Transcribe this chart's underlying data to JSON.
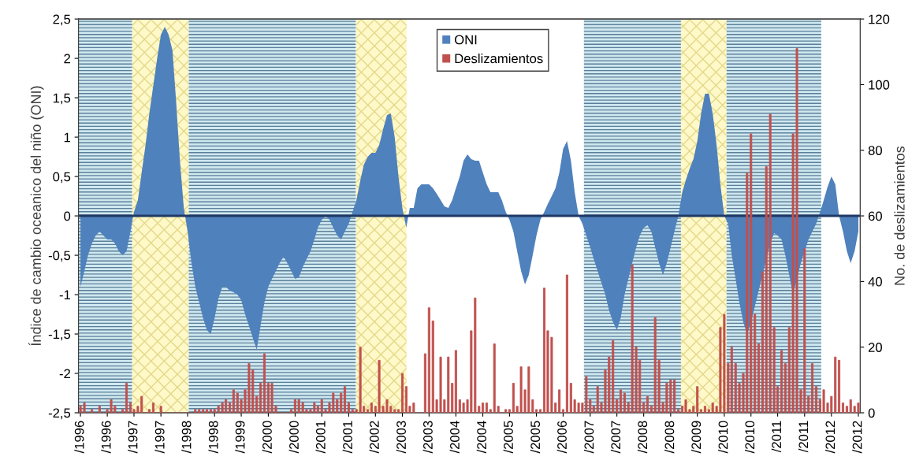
{
  "chart_data": {
    "type": "bar",
    "ylabel": "Índice de cambio oceanico del niño (ONI)",
    "y2label": "No. de deslizamientos",
    "x": [
      "1996-01",
      "1996-02",
      "1996-03",
      "1996-04",
      "1996-05",
      "1996-06",
      "1996-07",
      "1996-08",
      "1996-09",
      "1996-10",
      "1996-11",
      "1996-12",
      "1997-01",
      "1997-02",
      "1997-03",
      "1997-04",
      "1997-05",
      "1997-06",
      "1997-07",
      "1997-08",
      "1997-09",
      "1997-10",
      "1997-11",
      "1997-12",
      "1998-01",
      "1998-02",
      "1998-03",
      "1998-04",
      "1998-05",
      "1998-06",
      "1998-07",
      "1998-08",
      "1998-09",
      "1998-10",
      "1998-11",
      "1998-12",
      "1999-01",
      "1999-02",
      "1999-03",
      "1999-04",
      "1999-05",
      "1999-06",
      "1999-07",
      "1999-08",
      "1999-09",
      "1999-10",
      "1999-11",
      "1999-12",
      "2000-01",
      "2000-02",
      "2000-03",
      "2000-04",
      "2000-05",
      "2000-06",
      "2000-07",
      "2000-08",
      "2000-09",
      "2000-10",
      "2000-11",
      "2000-12",
      "2001-01",
      "2001-02",
      "2001-03",
      "2001-04",
      "2001-05",
      "2001-06",
      "2001-07",
      "2001-08",
      "2001-09",
      "2001-10",
      "2001-11",
      "2001-12",
      "2002-01",
      "2002-02",
      "2002-03",
      "2002-04",
      "2002-05",
      "2002-06",
      "2002-07",
      "2002-08",
      "2002-09",
      "2002-10",
      "2002-11",
      "2002-12",
      "2003-01",
      "2003-02",
      "2003-03",
      "2003-04",
      "2003-05",
      "2003-06",
      "2003-07",
      "2003-08",
      "2003-09",
      "2003-10",
      "2003-11",
      "2003-12",
      "2004-01",
      "2004-02",
      "2004-03",
      "2004-04",
      "2004-05",
      "2004-06",
      "2004-07",
      "2004-08",
      "2004-09",
      "2004-10",
      "2004-11",
      "2004-12",
      "2005-01",
      "2005-02",
      "2005-03",
      "2005-04",
      "2005-05",
      "2005-06",
      "2005-07",
      "2005-08",
      "2005-09",
      "2005-10",
      "2005-11",
      "2005-12",
      "2006-01",
      "2006-02",
      "2006-03",
      "2006-04",
      "2006-05",
      "2006-06",
      "2006-07",
      "2006-08",
      "2006-09",
      "2006-10",
      "2006-11",
      "2006-12",
      "2007-01",
      "2007-02",
      "2007-03",
      "2007-04",
      "2007-05",
      "2007-06",
      "2007-07",
      "2007-08",
      "2007-09",
      "2007-10",
      "2007-11",
      "2007-12",
      "2008-01",
      "2008-02",
      "2008-03",
      "2008-04",
      "2008-05",
      "2008-06",
      "2008-07",
      "2008-08",
      "2008-09",
      "2008-10",
      "2008-11",
      "2008-12",
      "2009-01",
      "2009-02",
      "2009-03",
      "2009-04",
      "2009-05",
      "2009-06",
      "2009-07",
      "2009-08",
      "2009-09",
      "2009-10",
      "2009-11",
      "2009-12",
      "2010-01",
      "2010-02",
      "2010-03",
      "2010-04",
      "2010-05",
      "2010-06",
      "2010-07",
      "2010-08",
      "2010-09",
      "2010-10",
      "2010-11",
      "2010-12",
      "2011-01",
      "2011-02",
      "2011-03",
      "2011-04",
      "2011-05",
      "2011-06",
      "2011-07",
      "2011-08",
      "2011-09",
      "2011-10",
      "2011-11",
      "2011-12",
      "2012-01",
      "2012-02",
      "2012-03",
      "2012-04",
      "2012-05",
      "2012-06",
      "2012-07",
      "2012-08",
      "2012-09",
      "2012-10",
      "2012-11",
      "2012-12"
    ],
    "series": [
      {
        "name": "ONI",
        "type": "area",
        "color": "#4f81bd",
        "values": [
          -0.9,
          -0.7,
          -0.5,
          -0.35,
          -0.25,
          -0.2,
          -0.25,
          -0.3,
          -0.3,
          -0.35,
          -0.45,
          -0.5,
          -0.45,
          -0.2,
          0.05,
          0.2,
          0.55,
          0.9,
          1.3,
          1.65,
          2.0,
          2.3,
          2.4,
          2.3,
          2.1,
          1.4,
          0.7,
          0.1,
          -0.2,
          -0.6,
          -0.9,
          -1.1,
          -1.3,
          -1.45,
          -1.5,
          -1.3,
          -1.05,
          -0.9,
          -0.9,
          -0.95,
          -0.97,
          -1.0,
          -1.07,
          -1.25,
          -1.4,
          -1.55,
          -1.7,
          -1.4,
          -1.1,
          -0.9,
          -0.8,
          -0.7,
          -0.6,
          -0.52,
          -0.6,
          -0.7,
          -0.8,
          -0.78,
          -0.65,
          -0.55,
          -0.45,
          -0.3,
          -0.15,
          -0.05,
          0.0,
          -0.05,
          -0.15,
          -0.25,
          -0.3,
          -0.2,
          -0.1,
          0.05,
          0.2,
          0.45,
          0.65,
          0.75,
          0.8,
          0.8,
          0.9,
          1.1,
          1.28,
          1.3,
          1.0,
          0.5,
          0.1,
          -0.15,
          0.1,
          0.1,
          0.35,
          0.4,
          0.4,
          0.4,
          0.35,
          0.28,
          0.2,
          0.12,
          0.1,
          0.2,
          0.35,
          0.5,
          0.7,
          0.78,
          0.72,
          0.7,
          0.7,
          0.55,
          0.4,
          0.3,
          0.3,
          0.3,
          0.2,
          0.05,
          -0.05,
          -0.2,
          -0.45,
          -0.7,
          -0.87,
          -0.75,
          -0.5,
          -0.25,
          -0.05,
          0.05,
          0.15,
          0.25,
          0.35,
          0.55,
          0.85,
          0.95,
          0.7,
          0.3,
          0.0,
          -0.1,
          -0.25,
          -0.4,
          -0.55,
          -0.7,
          -0.85,
          -1.0,
          -1.2,
          -1.35,
          -1.45,
          -1.3,
          -1.0,
          -0.8,
          -0.6,
          -0.4,
          -0.25,
          -0.15,
          -0.12,
          -0.2,
          -0.4,
          -0.6,
          -0.75,
          -0.6,
          -0.4,
          -0.2,
          0.0,
          0.3,
          0.45,
          0.6,
          0.72,
          0.95,
          1.3,
          1.55,
          1.55,
          1.3,
          0.9,
          0.4,
          0.0,
          -0.1,
          -0.5,
          -0.8,
          -1.1,
          -1.35,
          -1.5,
          -1.35,
          -1.15,
          -0.95,
          -0.75,
          -0.55,
          -0.35,
          -0.22,
          -0.25,
          -0.3,
          -0.5,
          -0.75,
          -1.0,
          -0.8,
          -0.6,
          -0.45,
          -0.3,
          -0.2,
          -0.1,
          0.05,
          0.2,
          0.37,
          0.5,
          0.4,
          0.0,
          -0.2,
          -0.45,
          -0.6,
          -0.45,
          -0.2
        ]
      },
      {
        "name": "Deslizamientos",
        "axis": "y2",
        "color": "#c0504d",
        "values": [
          2,
          3,
          0,
          1,
          0,
          2,
          0,
          1,
          4,
          2,
          0,
          1,
          9,
          3,
          1,
          2,
          5,
          0,
          1,
          3,
          0,
          2,
          0,
          0,
          0,
          0,
          0,
          0,
          0,
          0,
          1,
          1,
          1,
          1,
          1,
          1,
          2,
          3,
          4,
          3,
          7,
          6,
          4,
          7,
          15,
          13,
          5,
          9,
          18,
          9,
          9,
          2,
          0,
          0,
          0,
          1,
          4,
          4,
          3,
          1,
          1,
          3,
          2,
          4,
          1,
          3,
          6,
          4,
          6,
          8,
          3,
          1,
          1,
          20,
          2,
          1,
          3,
          2,
          16,
          2,
          4,
          2,
          1,
          1,
          12,
          8,
          2,
          3,
          0,
          0,
          18,
          32,
          28,
          4,
          17,
          4,
          17,
          9,
          19,
          4,
          3,
          4,
          25,
          35,
          2,
          3,
          3,
          1,
          21,
          2,
          0,
          1,
          1,
          9,
          2,
          14,
          7,
          14,
          4,
          1,
          1,
          38,
          25,
          23,
          3,
          7,
          1,
          42,
          9,
          4,
          3,
          3,
          11,
          4,
          2,
          8,
          3,
          13,
          17,
          22,
          4,
          7,
          6,
          3,
          45,
          20,
          16,
          3,
          5,
          2,
          29,
          16,
          3,
          9,
          10,
          10,
          1,
          2,
          4,
          1,
          2,
          8,
          1,
          2,
          1,
          3,
          2,
          26,
          30,
          15,
          20,
          15,
          9,
          12,
          73,
          85,
          30,
          21,
          43,
          75,
          91,
          26,
          8,
          19,
          15,
          26,
          85,
          111,
          7,
          50,
          5,
          15,
          8,
          4,
          7,
          3,
          5,
          17,
          16,
          3,
          2,
          4,
          2,
          3
        ]
      }
    ],
    "xlim": [
      "1995-12-16",
      "2012-12-16"
    ],
    "xticks": [
      {
        "value": "1996-01",
        "label": "/1996"
      },
      {
        "value": "1996-08",
        "label": "/1996"
      },
      {
        "value": "1997-03",
        "label": "/1997"
      },
      {
        "value": "1997-10",
        "label": "/1997"
      },
      {
        "value": "1998-05",
        "label": "/1998"
      },
      {
        "value": "1998-12",
        "label": "/1998"
      },
      {
        "value": "1999-07",
        "label": "/1999"
      },
      {
        "value": "2000-02",
        "label": "/2000"
      },
      {
        "value": "2000-09",
        "label": "/2000"
      },
      {
        "value": "2001-04",
        "label": "/2001"
      },
      {
        "value": "2001-11",
        "label": "/2001"
      },
      {
        "value": "2002-06",
        "label": "/2002"
      },
      {
        "value": "2003-01",
        "label": "/2003"
      },
      {
        "value": "2003-08",
        "label": "/2003"
      },
      {
        "value": "2004-03",
        "label": "/2004"
      },
      {
        "value": "2004-10",
        "label": "/2004"
      },
      {
        "value": "2005-05",
        "label": "/2005"
      },
      {
        "value": "2005-12",
        "label": "/2005"
      },
      {
        "value": "2006-07",
        "label": "/2006"
      },
      {
        "value": "2007-02",
        "label": "/2007"
      },
      {
        "value": "2007-09",
        "label": "/2007"
      },
      {
        "value": "2008-04",
        "label": "/2008"
      },
      {
        "value": "2008-11",
        "label": "/2008"
      },
      {
        "value": "2009-06",
        "label": "/2009"
      },
      {
        "value": "2010-01",
        "label": "/2010"
      },
      {
        "value": "2010-08",
        "label": "/2010"
      },
      {
        "value": "2011-03",
        "label": "/2011"
      },
      {
        "value": "2011-10",
        "label": "/2011"
      },
      {
        "value": "2012-05",
        "label": "/2012"
      },
      {
        "value": "2012-12",
        "label": "/2012"
      }
    ],
    "ylim": [
      -2.5,
      2.5
    ],
    "yticks": [
      {
        "value": -2.5,
        "label": "-2,5"
      },
      {
        "value": -2,
        "label": "-2"
      },
      {
        "value": -1.5,
        "label": "-1,5"
      },
      {
        "value": -1,
        "label": "-1"
      },
      {
        "value": -0.5,
        "label": "-0,5"
      },
      0,
      {
        "value": 0.5,
        "label": "0,5"
      },
      1,
      {
        "value": 1.5,
        "label": "1,5"
      },
      2,
      {
        "value": 2.5,
        "label": "2,5"
      }
    ],
    "y2lim": [
      0,
      120
    ],
    "y2ticks": [
      0,
      20,
      40,
      60,
      80,
      100,
      120
    ],
    "ref_lines": [
      {
        "axis": "y",
        "value": 0,
        "color": "#1f3864"
      }
    ],
    "bands": [
      {
        "axis": "x",
        "from": "1995-12-16",
        "to": "1997-02-15",
        "color": "#cfe8f0"
      },
      {
        "axis": "x",
        "from": "1997-02-15",
        "to": "1998-05-10",
        "color": "#fff8c8"
      },
      {
        "axis": "x",
        "from": "1998-05-10",
        "to": "2001-12-28",
        "color": "#cfe8f0"
      },
      {
        "axis": "x",
        "from": "2001-12-28",
        "to": "2003-02-03",
        "color": "#fff8c8"
      },
      {
        "axis": "x",
        "from": "2006-12-13",
        "to": "2009-01-22",
        "color": "#cfe8f0"
      },
      {
        "axis": "x",
        "from": "2009-01-22",
        "to": "2010-01-19",
        "color": "#fff8c8"
      },
      {
        "axis": "x",
        "from": "2010-01-19",
        "to": "2012-02-10",
        "color": "#cfe8f0"
      }
    ],
    "legend": "top",
    "grid": false
  }
}
